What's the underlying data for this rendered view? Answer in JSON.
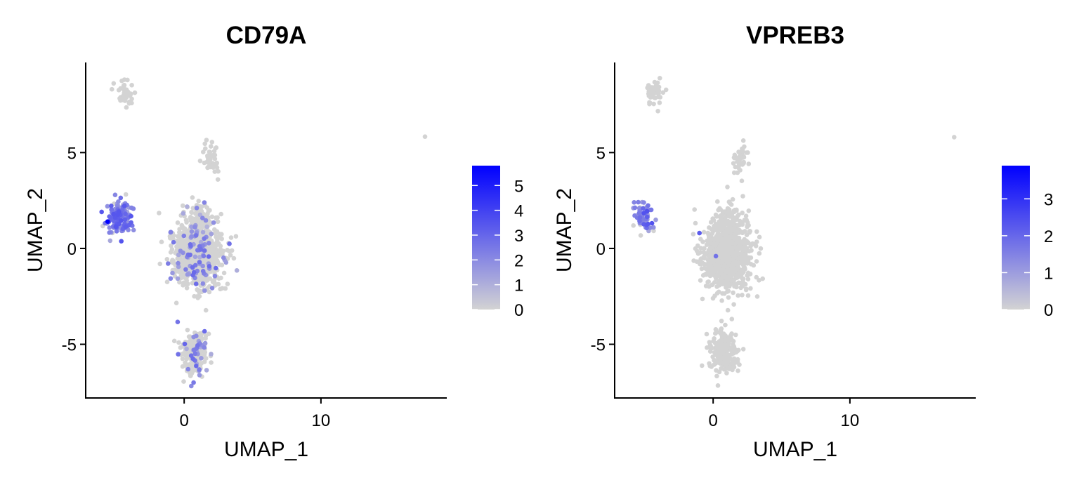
{
  "chart_data": [
    {
      "type": "scatter",
      "title": "CD79A",
      "xlabel": "UMAP_1",
      "ylabel": "UMAP_2",
      "xlim": [
        -7.2,
        19.2
      ],
      "ylim": [
        -7.8,
        9.7
      ],
      "x_ticks": [
        0,
        10
      ],
      "y_ticks": [
        -5,
        0,
        5
      ],
      "grid": false,
      "legend": "right",
      "color_low": "#d3d3d3",
      "color_high": "#0000ff",
      "color_range": [
        0,
        5.8
      ],
      "color_ticks": [
        0,
        1,
        2,
        3,
        4,
        5
      ],
      "clusters": [
        {
          "center": [
            -4.3,
            8.1
          ],
          "spread": [
            0.3,
            0.35
          ],
          "count": 40,
          "expr_frac": 0.0,
          "expr_max": 0
        },
        {
          "center": [
            -4.8,
            1.6
          ],
          "spread": [
            0.45,
            0.4
          ],
          "count": 150,
          "expr_frac": 0.95,
          "expr_max": 3.5
        },
        {
          "center": [
            2.0,
            4.7
          ],
          "spread": [
            0.3,
            0.4
          ],
          "count": 45,
          "expr_frac": 0.0,
          "expr_max": 0
        },
        {
          "center": [
            1.0,
            -0.4
          ],
          "spread": [
            0.9,
            0.85
          ],
          "count": 800,
          "expr_frac": 0.1,
          "expr_max": 3.0
        },
        {
          "center": [
            1.0,
            1.4
          ],
          "spread": [
            0.6,
            0.5
          ],
          "count": 120,
          "expr_frac": 0.05,
          "expr_max": 2.5
        },
        {
          "center": [
            0.8,
            -5.4
          ],
          "spread": [
            0.5,
            0.6
          ],
          "count": 220,
          "expr_frac": 0.15,
          "expr_max": 3.0
        },
        {
          "center": [
            17.6,
            5.8
          ],
          "spread": [
            0.02,
            0.02
          ],
          "count": 1,
          "expr_frac": 0.0,
          "expr_max": 0
        },
        {
          "center": [
            -1.0,
            0.8
          ],
          "spread": [
            0.05,
            0.05
          ],
          "count": 2,
          "expr_frac": 1.0,
          "expr_max": 2.5
        }
      ],
      "highlight_points": [
        [
          -5.6,
          1.4,
          5.8
        ]
      ]
    },
    {
      "type": "scatter",
      "title": "VPREB3",
      "xlabel": "UMAP_1",
      "ylabel": "UMAP_2",
      "xlim": [
        -7.2,
        19.2
      ],
      "ylim": [
        -7.8,
        9.7
      ],
      "x_ticks": [
        0,
        10
      ],
      "y_ticks": [
        -5,
        0,
        5
      ],
      "grid": false,
      "legend": "right",
      "color_low": "#d3d3d3",
      "color_high": "#0000ff",
      "color_range": [
        0,
        3.9
      ],
      "color_ticks": [
        0,
        1,
        2,
        3
      ],
      "clusters": [
        {
          "center": [
            -4.3,
            8.1
          ],
          "spread": [
            0.3,
            0.35
          ],
          "count": 40,
          "expr_frac": 0.0,
          "expr_max": 0
        },
        {
          "center": [
            -5.0,
            1.6
          ],
          "spread": [
            0.35,
            0.35
          ],
          "count": 70,
          "expr_frac": 0.75,
          "expr_max": 2.4
        },
        {
          "center": [
            2.0,
            4.7
          ],
          "spread": [
            0.3,
            0.4
          ],
          "count": 45,
          "expr_frac": 0.0,
          "expr_max": 0
        },
        {
          "center": [
            1.0,
            -0.4
          ],
          "spread": [
            0.9,
            0.85
          ],
          "count": 800,
          "expr_frac": 0.0,
          "expr_max": 0
        },
        {
          "center": [
            1.0,
            1.4
          ],
          "spread": [
            0.6,
            0.5
          ],
          "count": 120,
          "expr_frac": 0.0,
          "expr_max": 0
        },
        {
          "center": [
            0.8,
            -5.4
          ],
          "spread": [
            0.5,
            0.6
          ],
          "count": 220,
          "expr_frac": 0.0,
          "expr_max": 0
        },
        {
          "center": [
            17.6,
            5.8
          ],
          "spread": [
            0.02,
            0.02
          ],
          "count": 1,
          "expr_frac": 0.0,
          "expr_max": 0
        }
      ],
      "highlight_points": [
        [
          -1.0,
          0.8,
          2.2
        ],
        [
          0.2,
          -0.4,
          1.8
        ]
      ]
    }
  ]
}
